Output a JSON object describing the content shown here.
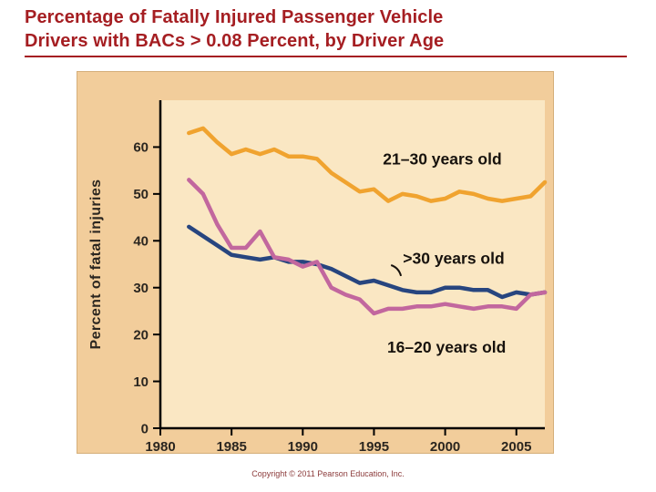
{
  "title_lines": [
    "Percentage of Fatally Injured Passenger Vehicle",
    "Drivers with BACs > 0.08 Percent, by Driver Age"
  ],
  "copyright": "Copyright © 2011 Pearson Education, Inc.",
  "colors": {
    "title": "#A51E22",
    "panel_bg": "#F2CD9B",
    "plot_bg": "#FAE7C3",
    "axis": "#000000",
    "tick_label": "#2B2620",
    "annotation": "#17120D",
    "copyright": "#8B3A3A",
    "series_21_30": "#F0A32F",
    "series_over_30": "#27457F",
    "series_16_20": "#C2679E"
  },
  "chart_data": {
    "type": "line",
    "title": "",
    "xlabel": "",
    "ylabel": "Percent of fatal injuries",
    "grid": false,
    "legend_position": "inline-annotations",
    "xlim": [
      1980,
      2007
    ],
    "ylim": [
      0,
      70
    ],
    "xticks": [
      1980,
      1985,
      1990,
      1995,
      2000,
      2005
    ],
    "yticks": [
      0,
      10,
      20,
      30,
      40,
      50,
      60
    ],
    "x": [
      1982,
      1983,
      1984,
      1985,
      1986,
      1987,
      1988,
      1989,
      1990,
      1991,
      1992,
      1993,
      1994,
      1995,
      1996,
      1997,
      1998,
      1999,
      2000,
      2001,
      2002,
      2003,
      2004,
      2005,
      2006,
      2007
    ],
    "series": [
      {
        "name": "21–30 years old",
        "color": "#F0A32F",
        "values": [
          63,
          64,
          61,
          58.5,
          59.5,
          58.5,
          59.5,
          58,
          58,
          57.5,
          54.5,
          52.5,
          50.5,
          51,
          48.5,
          50,
          49.5,
          48.5,
          49,
          50.5,
          50,
          49,
          48.5,
          49,
          49.5,
          52.5
        ]
      },
      {
        "name": ">30 years old",
        "color": "#27457F",
        "values": [
          43,
          41,
          39,
          37,
          36.5,
          36,
          36.5,
          35.5,
          35.5,
          35,
          34,
          32.5,
          31,
          31.5,
          30.5,
          29.5,
          29,
          29,
          30,
          30,
          29.5,
          29.5,
          28,
          29,
          28.5,
          29
        ]
      },
      {
        "name": "16–20 years old",
        "color": "#C2679E",
        "values": [
          53,
          50,
          43.5,
          38.5,
          38.5,
          42,
          36.5,
          36,
          34.5,
          35.5,
          30,
          28.5,
          27.5,
          24.5,
          25.5,
          25.5,
          26,
          26,
          26.5,
          26,
          25.5,
          26,
          26,
          25.5,
          28.5,
          29
        ]
      }
    ],
    "annotations": [
      {
        "text": "21–30 years old",
        "x": 1999.8,
        "y": 57.5
      },
      {
        "text": ">30 years old",
        "x": 2000.6,
        "y": 36.3
      },
      {
        "text": "16–20 years old",
        "x": 2000.1,
        "y": 17.3
      }
    ],
    "connector": {
      "x1": 1996.2,
      "y1": 34.8,
      "x2": 1996.9,
      "y2": 32.5
    }
  }
}
